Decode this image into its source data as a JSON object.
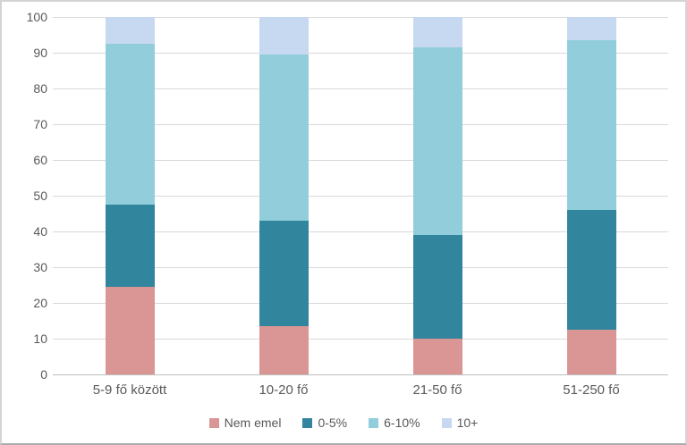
{
  "chart_data": {
    "type": "bar",
    "subtype": "stacked-100-percent-column",
    "title": "",
    "xlabel": "",
    "ylabel": "",
    "categories": [
      "5-9 fő között",
      "10-20 fő",
      "21-50 fő",
      "51-250 fő"
    ],
    "series": [
      {
        "name": "Nem emel",
        "color": "#D99694",
        "values": [
          24.5,
          13.5,
          10.0,
          12.5
        ]
      },
      {
        "name": "0-5%",
        "color": "#31859C",
        "values": [
          23.0,
          29.5,
          29.0,
          33.5
        ]
      },
      {
        "name": "6-10%",
        "color": "#92CDDC",
        "values": [
          45.0,
          46.5,
          52.5,
          47.5
        ]
      },
      {
        "name": "10+",
        "color": "#C6D9F1",
        "values": [
          7.5,
          10.5,
          8.5,
          6.5
        ]
      }
    ],
    "ylim": [
      0,
      100
    ],
    "ytick_step": 10,
    "ytick_labels": [
      "100",
      "90",
      "80",
      "70",
      "60",
      "50",
      "40",
      "30",
      "20",
      "10",
      "0"
    ],
    "grid": true,
    "legend_position": "bottom"
  },
  "styles": {
    "text_color": "#595959",
    "gridline_color": "#D9D9D9",
    "axis_line_color": "#BFBFBF",
    "border_color": "#D4D4D4",
    "border_bottom_color": "#ABABAB",
    "background": "#FFFFFF"
  }
}
